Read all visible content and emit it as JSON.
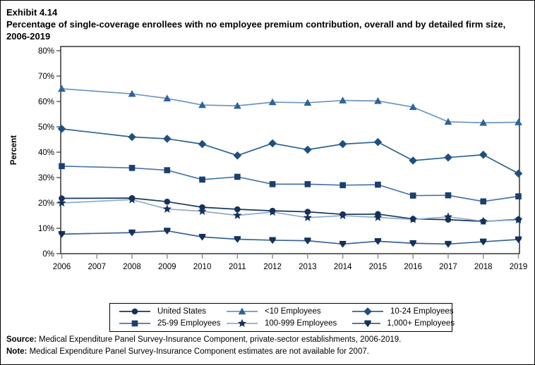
{
  "header": {
    "exhibit": "Exhibit 4.14",
    "title": "Percentage of single-coverage enrollees with no employee premium contribution, overall and by detailed firm size, 2006-2019"
  },
  "footer": {
    "source_label": "Source:",
    "source_text": " Medical Expenditure Panel Survey-Insurance Component, private-sector establishments, 2006-2019.",
    "note_label": "Note:",
    "note_text": " Medical Expenditure Panel Survey-Insurance Component estimates are not available for 2007."
  },
  "chart_data": {
    "type": "line",
    "title": "Percentage of single-coverage enrollees with no employee premium contribution, overall and by detailed firm size, 2006-2019",
    "xlabel": "",
    "ylabel": "Percent",
    "ylim": [
      0,
      80
    ],
    "y_ticks": [
      0,
      10,
      20,
      30,
      40,
      50,
      60,
      70,
      80
    ],
    "y_tick_suffix": "%",
    "grid": false,
    "legend_position": "bottom",
    "axis_years": [
      2006,
      2007,
      2008,
      2009,
      2010,
      2011,
      2012,
      2013,
      2014,
      2015,
      2016,
      2017,
      2018,
      2019
    ],
    "note": "No data for 2007",
    "x": [
      2006,
      2008,
      2009,
      2010,
      2011,
      2012,
      2013,
      2014,
      2015,
      2016,
      2017,
      2018,
      2019
    ],
    "series": [
      {
        "name": "United States",
        "marker": "circle",
        "color": "#14325a",
        "line_color": "#17375e",
        "values": [
          21.8,
          21.9,
          20.5,
          18.3,
          17.5,
          16.9,
          16.5,
          15.5,
          15.6,
          13.7,
          13.4,
          12.7,
          13.5
        ]
      },
      {
        "name": "<10 Employees",
        "marker": "triangle-up",
        "color": "#2e6398",
        "line_color": "#6e95bf",
        "values": [
          65.0,
          63.0,
          61.2,
          58.6,
          58.3,
          59.7,
          59.5,
          60.4,
          60.2,
          57.8,
          52.0,
          51.6,
          51.8
        ]
      },
      {
        "name": "10-24 Employees",
        "marker": "diamond",
        "color": "#1e4f80",
        "line_color": "#2e6390",
        "values": [
          49.2,
          46.0,
          45.3,
          43.2,
          38.7,
          43.5,
          41.0,
          43.2,
          44.0,
          36.7,
          37.9,
          39.0,
          31.6
        ]
      },
      {
        "name": "25-99 Employees",
        "marker": "square",
        "color": "#1c3f6e",
        "line_color": "#4a75a4",
        "values": [
          34.5,
          33.8,
          32.9,
          29.2,
          30.3,
          27.4,
          27.4,
          27.0,
          27.2,
          22.9,
          23.0,
          20.6,
          22.6
        ]
      },
      {
        "name": "100-999 Employees",
        "marker": "star",
        "color": "#14325a",
        "line_color": "#8fabcd",
        "values": [
          20.0,
          21.3,
          17.6,
          16.7,
          15.1,
          16.4,
          14.2,
          15.0,
          14.3,
          13.5,
          14.5,
          12.8,
          13.3
        ]
      },
      {
        "name": "1,000+ Employees",
        "marker": "pentagon-down",
        "color": "#14325a",
        "line_color": "#3a6494",
        "values": [
          7.7,
          8.3,
          9.0,
          6.6,
          5.7,
          5.3,
          5.1,
          3.8,
          4.9,
          4.1,
          3.8,
          4.7,
          5.6
        ]
      }
    ]
  }
}
